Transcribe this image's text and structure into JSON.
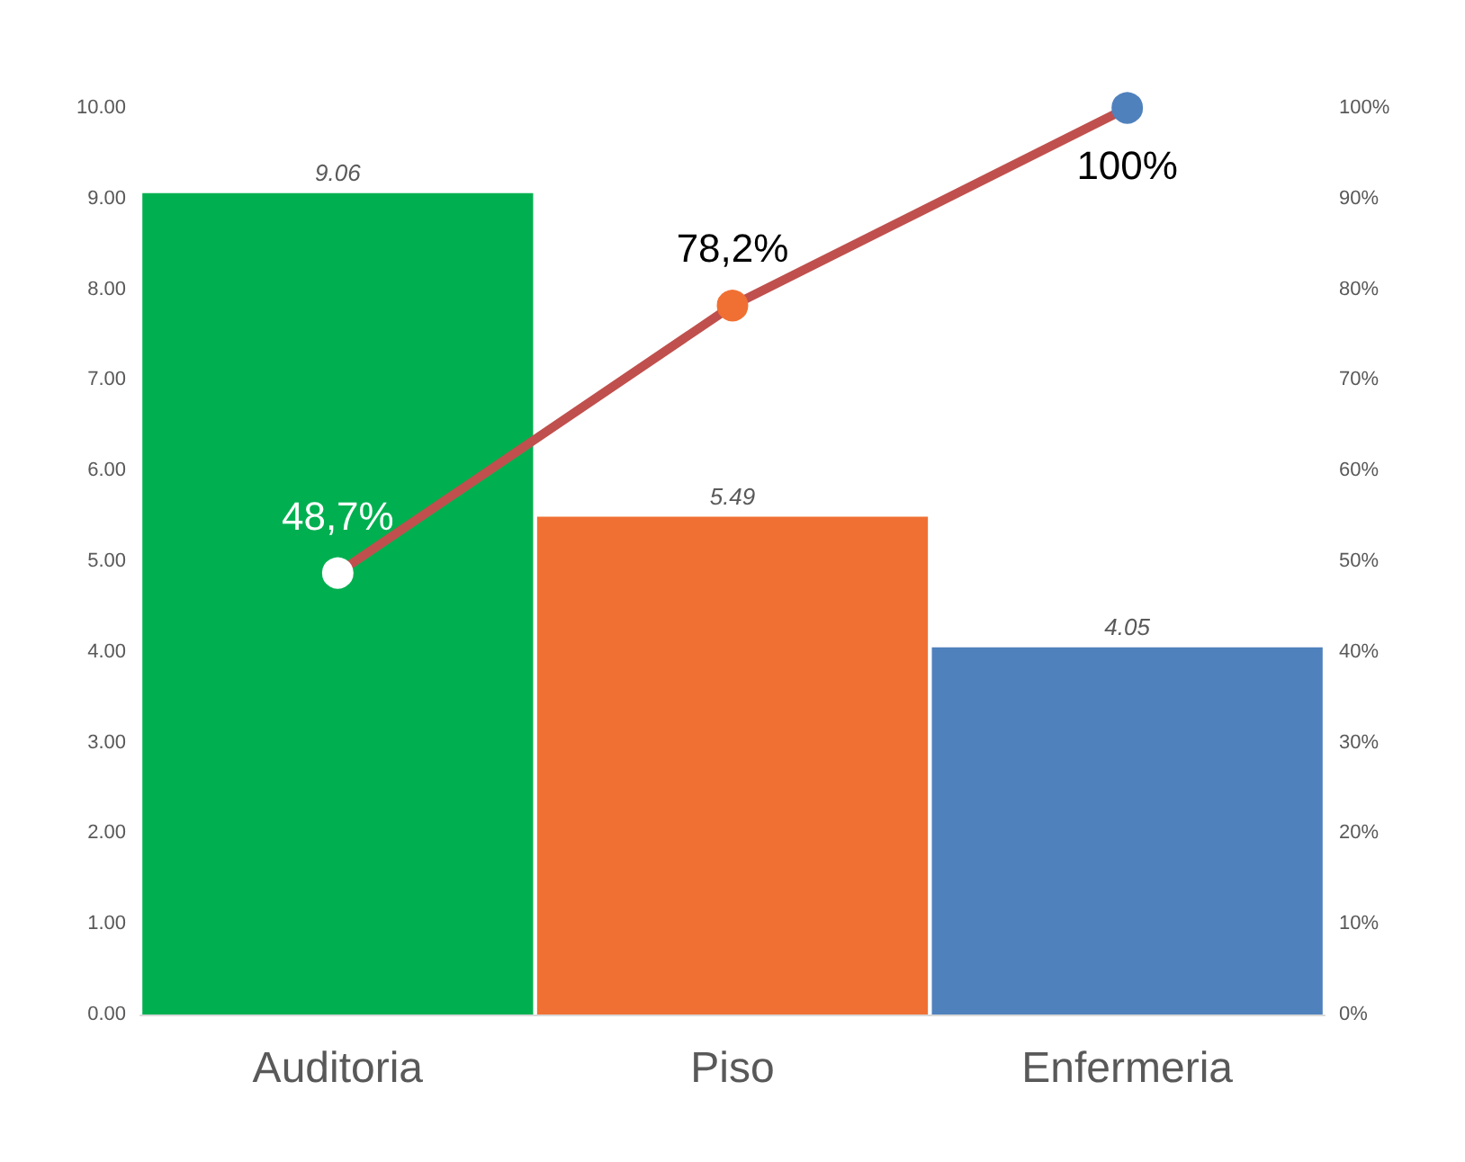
{
  "chart_data": {
    "type": "bar",
    "categories": [
      "Auditoria",
      "Piso",
      "Enfermeria"
    ],
    "series": [
      {
        "values": [
          9.06,
          5.49,
          4.05
        ],
        "colors": [
          "#00b050",
          "#f07033",
          "#4f81bd"
        ],
        "data_labels": true
      },
      {
        "type": "line",
        "axis": "y2",
        "color": "#c0504d",
        "values": [
          48.7,
          78.2,
          100
        ],
        "colors": [
          "#ffffff",
          "#f07033",
          "#4f81bd"
        ],
        "value_labels": [
          "48,7%",
          "78,2%",
          "100%"
        ],
        "marker": "circle"
      }
    ],
    "ylim": [
      0,
      10
    ],
    "yticks": [
      {
        "value": 0,
        "label": "0.00"
      },
      {
        "value": 1,
        "label": "1.00"
      },
      {
        "value": 2,
        "label": "2.00"
      },
      {
        "value": 3,
        "label": "3.00"
      },
      {
        "value": 4,
        "label": "4.00"
      },
      {
        "value": 5,
        "label": "5.00"
      },
      {
        "value": 6,
        "label": "6.00"
      },
      {
        "value": 7,
        "label": "7.00"
      },
      {
        "value": 8,
        "label": "8.00"
      },
      {
        "value": 9,
        "label": "9.00"
      },
      {
        "value": 10,
        "label": "10.00"
      }
    ],
    "y2lim": [
      0,
      100
    ],
    "y2ticks": [
      {
        "value": 0,
        "label": "0%"
      },
      {
        "value": 10,
        "label": "10%"
      },
      {
        "value": 20,
        "label": "20%"
      },
      {
        "value": 30,
        "label": "30%"
      },
      {
        "value": 40,
        "label": "40%"
      },
      {
        "value": 50,
        "label": "50%"
      },
      {
        "value": 60,
        "label": "60%"
      },
      {
        "value": 70,
        "label": "70%"
      },
      {
        "value": 80,
        "label": "80%"
      },
      {
        "value": 90,
        "label": "90%"
      },
      {
        "value": 100,
        "label": "100%"
      }
    ],
    "grid": false
  }
}
